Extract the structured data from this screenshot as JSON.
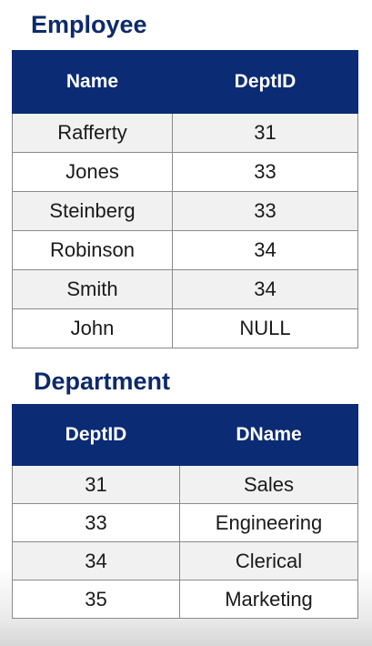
{
  "employee": {
    "title": "Employee",
    "headers": [
      "Name",
      "DeptID"
    ],
    "rows": [
      [
        "Rafferty",
        "31"
      ],
      [
        "Jones",
        "33"
      ],
      [
        "Steinberg",
        "33"
      ],
      [
        "Robinson",
        "34"
      ],
      [
        "Smith",
        "34"
      ],
      [
        "John",
        "NULL"
      ]
    ]
  },
  "department": {
    "title": "Department",
    "headers": [
      "DeptID",
      "DName"
    ],
    "rows": [
      [
        "31",
        "Sales"
      ],
      [
        "33",
        "Engineering"
      ],
      [
        "34",
        "Clerical"
      ],
      [
        "35",
        "Marketing"
      ]
    ]
  },
  "colors": {
    "title_text": "#0d2a6b",
    "header_bg": "#0b2b74",
    "header_text": "#ffffff",
    "shaded_row_bg": "#f1f1f1",
    "grid_line": "#8a8a8a"
  }
}
